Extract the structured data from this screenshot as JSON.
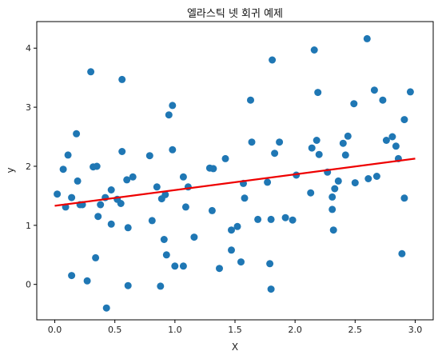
{
  "chart_data": {
    "type": "scatter",
    "title": "엘라스틱 넷 회귀 예제",
    "xlabel": "X",
    "ylabel": "y",
    "xlim": [
      -0.15,
      3.15
    ],
    "ylim": [
      -0.6,
      4.45
    ],
    "x_ticks": [
      "0.0",
      "0.5",
      "1.0",
      "1.5",
      "2.0",
      "2.5",
      "3.0"
    ],
    "y_ticks": [
      "0",
      "1",
      "2",
      "3",
      "4"
    ],
    "grid": false,
    "colors": {
      "points": "#1f77b4",
      "line": "#ee0000"
    },
    "series": [
      {
        "kind": "points",
        "points": [
          [
            0.02,
            1.53
          ],
          [
            0.07,
            1.95
          ],
          [
            0.09,
            1.31
          ],
          [
            0.11,
            2.19
          ],
          [
            0.14,
            1.47
          ],
          [
            0.14,
            0.15
          ],
          [
            0.18,
            2.55
          ],
          [
            0.19,
            1.75
          ],
          [
            0.21,
            1.35
          ],
          [
            0.23,
            1.35
          ],
          [
            0.27,
            0.06
          ],
          [
            0.3,
            3.6
          ],
          [
            0.32,
            1.99
          ],
          [
            0.34,
            0.45
          ],
          [
            0.35,
            2.0
          ],
          [
            0.36,
            1.15
          ],
          [
            0.38,
            1.35
          ],
          [
            0.42,
            1.47
          ],
          [
            0.43,
            -0.4
          ],
          [
            0.47,
            1.6
          ],
          [
            0.47,
            1.02
          ],
          [
            0.52,
            1.44
          ],
          [
            0.55,
            1.37
          ],
          [
            0.56,
            2.25
          ],
          [
            0.56,
            3.47
          ],
          [
            0.6,
            1.77
          ],
          [
            0.61,
            0.96
          ],
          [
            0.61,
            -0.02
          ],
          [
            0.65,
            1.82
          ],
          [
            0.79,
            2.18
          ],
          [
            0.81,
            1.08
          ],
          [
            0.85,
            1.65
          ],
          [
            0.88,
            -0.03
          ],
          [
            0.89,
            1.45
          ],
          [
            0.91,
            0.76
          ],
          [
            0.92,
            1.52
          ],
          [
            0.93,
            0.5
          ],
          [
            0.95,
            2.87
          ],
          [
            0.98,
            3.03
          ],
          [
            0.98,
            2.28
          ],
          [
            1.0,
            0.31
          ],
          [
            1.07,
            1.82
          ],
          [
            1.07,
            0.31
          ],
          [
            1.09,
            1.31
          ],
          [
            1.11,
            1.65
          ],
          [
            1.16,
            0.8
          ],
          [
            1.29,
            1.97
          ],
          [
            1.31,
            1.25
          ],
          [
            1.32,
            1.96
          ],
          [
            1.37,
            0.27
          ],
          [
            1.42,
            2.13
          ],
          [
            1.47,
            0.92
          ],
          [
            1.47,
            0.58
          ],
          [
            1.52,
            0.98
          ],
          [
            1.55,
            0.38
          ],
          [
            1.57,
            1.71
          ],
          [
            1.58,
            1.46
          ],
          [
            1.63,
            3.12
          ],
          [
            1.64,
            2.41
          ],
          [
            1.69,
            1.1
          ],
          [
            1.77,
            1.73
          ],
          [
            1.79,
            0.35
          ],
          [
            1.8,
            -0.08
          ],
          [
            1.8,
            1.1
          ],
          [
            1.81,
            3.8
          ],
          [
            1.83,
            2.22
          ],
          [
            1.87,
            2.41
          ],
          [
            1.92,
            1.13
          ],
          [
            1.98,
            1.09
          ],
          [
            2.01,
            1.85
          ],
          [
            2.13,
            1.55
          ],
          [
            2.14,
            2.31
          ],
          [
            2.16,
            3.97
          ],
          [
            2.18,
            2.44
          ],
          [
            2.19,
            3.25
          ],
          [
            2.2,
            2.2
          ],
          [
            2.27,
            1.9
          ],
          [
            2.31,
            1.48
          ],
          [
            2.31,
            1.27
          ],
          [
            2.32,
            0.92
          ],
          [
            2.33,
            1.62
          ],
          [
            2.36,
            1.75
          ],
          [
            2.4,
            2.39
          ],
          [
            2.42,
            2.19
          ],
          [
            2.44,
            2.51
          ],
          [
            2.49,
            3.06
          ],
          [
            2.5,
            1.72
          ],
          [
            2.6,
            4.16
          ],
          [
            2.61,
            1.79
          ],
          [
            2.66,
            3.29
          ],
          [
            2.68,
            1.83
          ],
          [
            2.73,
            3.12
          ],
          [
            2.76,
            2.44
          ],
          [
            2.81,
            2.5
          ],
          [
            2.84,
            2.34
          ],
          [
            2.86,
            2.13
          ],
          [
            2.89,
            0.52
          ],
          [
            2.91,
            2.79
          ],
          [
            2.91,
            1.46
          ],
          [
            2.96,
            3.26
          ]
        ]
      },
      {
        "kind": "line",
        "points": [
          [
            0.0,
            1.33
          ],
          [
            3.0,
            2.13
          ]
        ]
      }
    ]
  }
}
